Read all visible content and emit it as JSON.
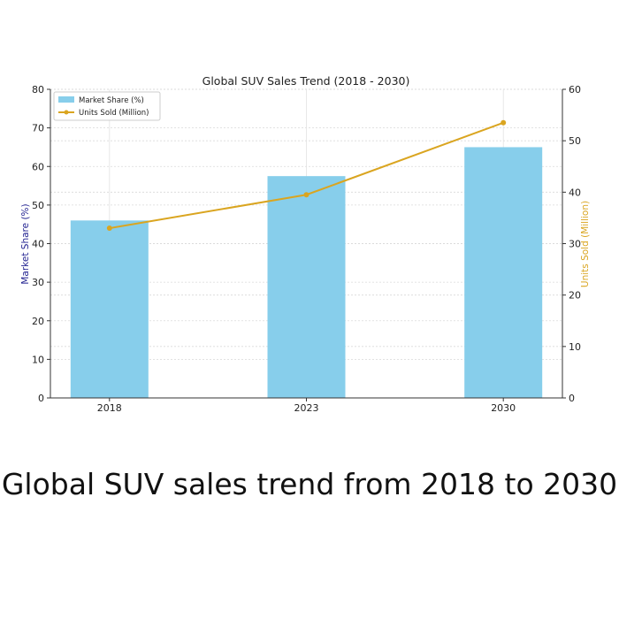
{
  "chart_data": {
    "type": "bar",
    "title": "Global SUV Sales Trend (2018 - 2030)",
    "categories": [
      "2018",
      "2023",
      "2030"
    ],
    "series": [
      {
        "name": "Market Share (%)",
        "type": "bar",
        "axis": "left",
        "values": [
          46,
          57.5,
          65
        ],
        "color": "#87ceeb"
      },
      {
        "name": "Units Sold (Million)",
        "type": "line",
        "axis": "right",
        "values": [
          33,
          39.5,
          53.5
        ],
        "color": "#daa520"
      }
    ],
    "ylabel": "Market Share (%)",
    "ylabel_color": "#1f1f8f",
    "y2label": "Units Sold (Million)",
    "y2label_color": "#daa520",
    "ylim": [
      0,
      80
    ],
    "yticks": [
      0,
      10,
      20,
      30,
      40,
      50,
      60,
      70,
      80
    ],
    "y2lim": [
      0,
      60
    ],
    "y2ticks": [
      0,
      10,
      20,
      30,
      40,
      50,
      60
    ],
    "grid": true,
    "legend": "top-left"
  },
  "caption": "Global SUV sales trend from 2018 to 2030"
}
